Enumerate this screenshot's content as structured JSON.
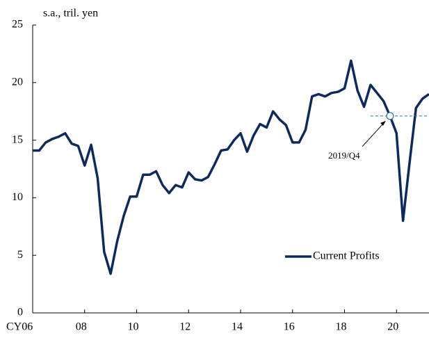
{
  "chart_data": {
    "type": "line",
    "y_label": "s.a., tril.  yen",
    "x": [
      2006,
      2006.25,
      2006.5,
      2006.75,
      2007,
      2007.25,
      2007.5,
      2007.75,
      2008,
      2008.25,
      2008.5,
      2008.75,
      2009,
      2009.25,
      2009.5,
      2009.75,
      2010,
      2010.25,
      2010.5,
      2010.75,
      2011,
      2011.25,
      2011.5,
      2011.75,
      2012,
      2012.25,
      2012.5,
      2012.75,
      2013,
      2013.25,
      2013.5,
      2013.75,
      2014,
      2014.25,
      2014.5,
      2014.75,
      2015,
      2015.25,
      2015.5,
      2015.75,
      2016,
      2016.25,
      2016.5,
      2016.75,
      2017,
      2017.25,
      2017.5,
      2017.75,
      2018,
      2018.25,
      2018.5,
      2018.75,
      2019,
      2019.25,
      2019.5,
      2019.75,
      2020,
      2020.25,
      2020.5,
      2020.75,
      2021,
      2021.25
    ],
    "series": [
      {
        "name": "Current Profits",
        "color": "#0d2a5e",
        "values": [
          14.1,
          14.1,
          14.8,
          15.1,
          15.3,
          15.6,
          14.7,
          14.5,
          12.8,
          14.6,
          11.7,
          5.3,
          3.4,
          6.2,
          8.4,
          10.1,
          10.1,
          12.0,
          12.0,
          12.3,
          11.1,
          10.4,
          11.1,
          10.9,
          12.2,
          11.6,
          11.5,
          11.8,
          12.9,
          14.1,
          14.2,
          15.0,
          15.6,
          14.0,
          15.4,
          16.4,
          16.1,
          17.5,
          16.8,
          16.3,
          14.8,
          14.8,
          15.9,
          18.8,
          19.0,
          18.8,
          19.1,
          19.2,
          19.5,
          21.9,
          19.3,
          17.9,
          19.8,
          19.1,
          18.4,
          17.1,
          15.6,
          8.0,
          13.0,
          17.8,
          18.6,
          19.0
        ]
      }
    ],
    "xlim": [
      2006,
      2021.25
    ],
    "ylim": [
      0,
      25
    ],
    "xticks": [
      {
        "value": 2006,
        "label": "CY06"
      },
      {
        "value": 2008,
        "label": "08"
      },
      {
        "value": 2010,
        "label": "10"
      },
      {
        "value": 2012,
        "label": "12"
      },
      {
        "value": 2014,
        "label": "14"
      },
      {
        "value": 2016,
        "label": "16"
      },
      {
        "value": 2018,
        "label": "18"
      },
      {
        "value": 2020,
        "label": "20"
      }
    ],
    "yticks": [
      0,
      5,
      10,
      15,
      20,
      25
    ],
    "annotation": {
      "text": "2019/Q4",
      "x": 2019.75,
      "y": 17.1
    },
    "legend": "lower right",
    "grid": false
  }
}
